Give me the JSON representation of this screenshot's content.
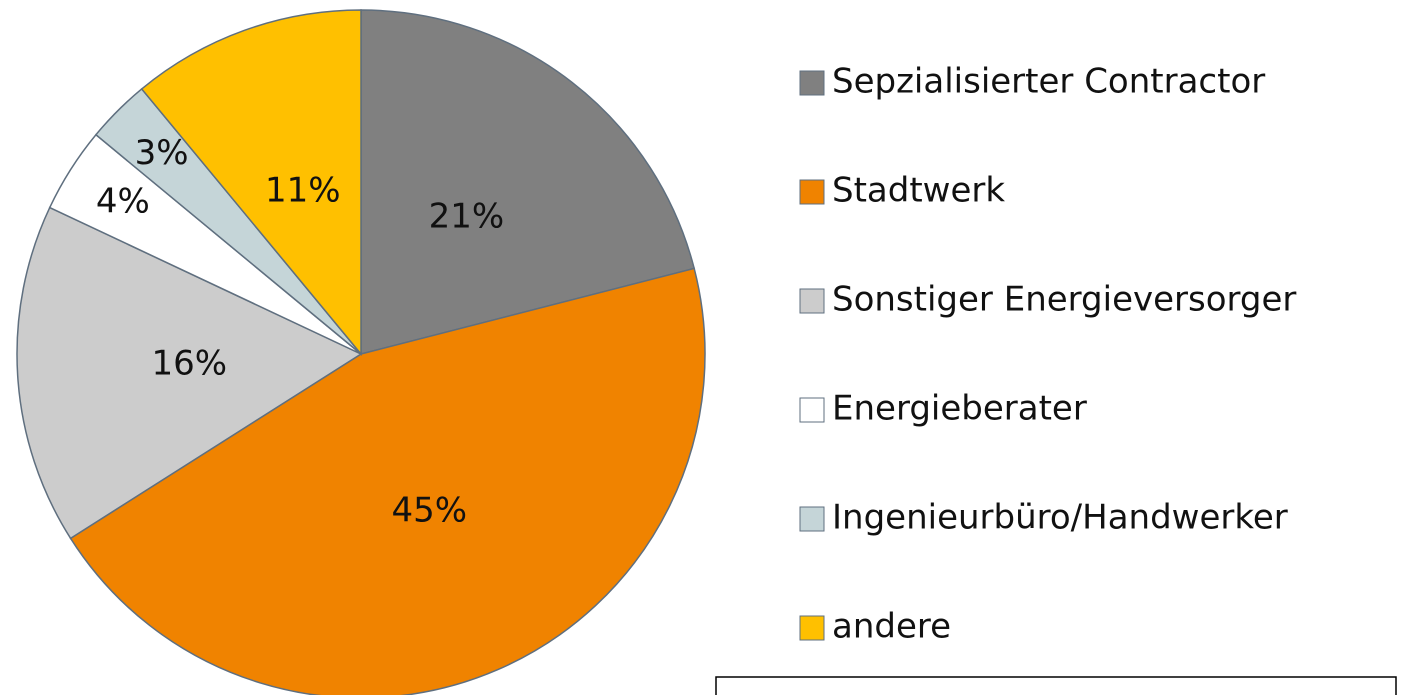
{
  "chart_data": {
    "type": "pie",
    "categories": [
      "Sepzialisierter Contractor",
      "Stadtwerk",
      "Sonstiger Energieversorger",
      "Energieberater",
      "Ingenieurbüro/Handwerker",
      "andere"
    ],
    "values": [
      21,
      45,
      16,
      4,
      3,
      11
    ],
    "value_labels": [
      "21%",
      "45%",
      "16%",
      "4%",
      "3%",
      "11%"
    ],
    "colors": [
      "#808080",
      "#f08300",
      "#cccccc",
      "#ffffff",
      "#c5d5d8",
      "#ffc000"
    ],
    "legend": "right"
  }
}
